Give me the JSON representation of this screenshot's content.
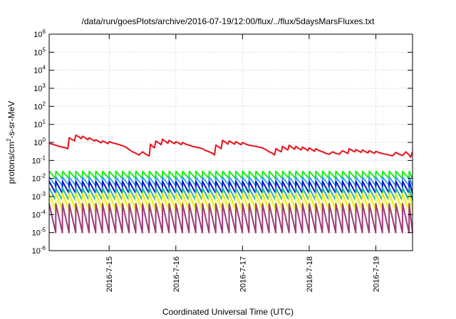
{
  "chart_data": {
    "type": "line",
    "title": "/data/run/goesPlots/archive/2016-07-19/12:00/flux/../flux/5daysMarsFluxes.txt",
    "xlabel": "Coordinated Universal Time (UTC)",
    "ylabel": {
      "before": "protons/cm",
      "superscript": "2",
      "after": "-s-sr-MeV"
    },
    "x_unit": "days",
    "x_range": [
      14.1,
      19.55
    ],
    "x_ticks": [
      {
        "value": 15,
        "label": "2016-7-15"
      },
      {
        "value": 16,
        "label": "2016-7-16"
      },
      {
        "value": 17,
        "label": "2016-7-17"
      },
      {
        "value": 18,
        "label": "2016-7-18"
      },
      {
        "value": 19,
        "label": "2016-7-19"
      }
    ],
    "y_scale": "log",
    "y_range": [
      1e-06,
      1000000.0
    ],
    "y_ticks": [
      {
        "value": 1000000.0,
        "base": "10",
        "exp": "6"
      },
      {
        "value": 100000.0,
        "base": "10",
        "exp": "5"
      },
      {
        "value": 10000.0,
        "base": "10",
        "exp": "4"
      },
      {
        "value": 1000.0,
        "base": "10",
        "exp": "3"
      },
      {
        "value": 100.0,
        "base": "10",
        "exp": "2"
      },
      {
        "value": 10.0,
        "base": "10",
        "exp": "1"
      },
      {
        "value": 1.0,
        "base": "10",
        "exp": "0"
      },
      {
        "value": 0.1,
        "base": "10",
        "exp": "-1"
      },
      {
        "value": 0.01,
        "base": "10",
        "exp": "-2"
      },
      {
        "value": 0.001,
        "base": "10",
        "exp": "-3"
      },
      {
        "value": 0.0001,
        "base": "10",
        "exp": "-4"
      },
      {
        "value": 1e-05,
        "base": "10",
        "exp": "-5"
      },
      {
        "value": 1e-06,
        "base": "10",
        "exp": "-6"
      }
    ],
    "grid": true,
    "series": [
      {
        "color": "#e8101a",
        "points": [
          [
            14.1,
            0.9
          ],
          [
            14.15,
            0.8
          ],
          [
            14.2,
            0.7
          ],
          [
            14.25,
            0.6
          ],
          [
            14.3,
            0.55
          ],
          [
            14.35,
            0.5
          ],
          [
            14.38,
            0.45
          ],
          [
            14.4,
            1.8
          ],
          [
            14.45,
            1.4
          ],
          [
            14.48,
            1.2
          ],
          [
            14.5,
            2.5
          ],
          [
            14.55,
            2.0
          ],
          [
            14.58,
            1.6
          ],
          [
            14.6,
            2.2
          ],
          [
            14.65,
            1.7
          ],
          [
            14.68,
            1.4
          ],
          [
            14.7,
            1.8
          ],
          [
            14.75,
            1.4
          ],
          [
            14.78,
            1.2
          ],
          [
            14.8,
            1.4
          ],
          [
            14.85,
            1.1
          ],
          [
            14.88,
            0.95
          ],
          [
            14.9,
            1.2
          ],
          [
            14.95,
            1.0
          ],
          [
            14.98,
            0.85
          ],
          [
            15.0,
            1.1
          ],
          [
            15.05,
            0.95
          ],
          [
            15.1,
            0.85
          ],
          [
            15.15,
            0.75
          ],
          [
            15.2,
            0.65
          ],
          [
            15.25,
            0.55
          ],
          [
            15.3,
            0.4
          ],
          [
            15.35,
            0.3
          ],
          [
            15.4,
            0.25
          ],
          [
            15.45,
            0.2
          ],
          [
            15.5,
            0.3
          ],
          [
            15.55,
            0.22
          ],
          [
            15.6,
            0.18
          ],
          [
            15.62,
            0.8
          ],
          [
            15.65,
            0.6
          ],
          [
            15.68,
            0.5
          ],
          [
            15.7,
            1.2
          ],
          [
            15.75,
            0.9
          ],
          [
            15.78,
            0.75
          ],
          [
            15.8,
            1.5
          ],
          [
            15.85,
            1.1
          ],
          [
            15.88,
            0.9
          ],
          [
            15.9,
            1.3
          ],
          [
            15.95,
            1.0
          ],
          [
            15.98,
            0.85
          ],
          [
            16.0,
            1.1
          ],
          [
            16.05,
            0.9
          ],
          [
            16.08,
            0.75
          ],
          [
            16.1,
            1.0
          ],
          [
            16.15,
            0.8
          ],
          [
            16.2,
            0.7
          ],
          [
            16.25,
            0.6
          ],
          [
            16.3,
            0.55
          ],
          [
            16.35,
            0.5
          ],
          [
            16.4,
            0.45
          ],
          [
            16.45,
            0.35
          ],
          [
            16.5,
            0.3
          ],
          [
            16.55,
            0.25
          ],
          [
            16.58,
            0.2
          ],
          [
            16.6,
            0.7
          ],
          [
            16.65,
            0.55
          ],
          [
            16.68,
            0.45
          ],
          [
            16.7,
            1.3
          ],
          [
            16.75,
            1.0
          ],
          [
            16.78,
            0.8
          ],
          [
            16.8,
            1.2
          ],
          [
            16.85,
            0.95
          ],
          [
            16.88,
            0.8
          ],
          [
            16.9,
            1.1
          ],
          [
            16.95,
            0.85
          ],
          [
            16.98,
            0.75
          ],
          [
            17.0,
            1.0
          ],
          [
            17.05,
            0.8
          ],
          [
            17.1,
            0.7
          ],
          [
            17.15,
            0.65
          ],
          [
            17.2,
            0.6
          ],
          [
            17.25,
            0.55
          ],
          [
            17.3,
            0.5
          ],
          [
            17.35,
            0.4
          ],
          [
            17.4,
            0.3
          ],
          [
            17.45,
            0.25
          ],
          [
            17.48,
            0.2
          ],
          [
            17.5,
            0.45
          ],
          [
            17.55,
            0.35
          ],
          [
            17.58,
            0.3
          ],
          [
            17.6,
            0.6
          ],
          [
            17.65,
            0.45
          ],
          [
            17.68,
            0.38
          ],
          [
            17.7,
            0.7
          ],
          [
            17.75,
            0.5
          ],
          [
            17.78,
            0.42
          ],
          [
            17.8,
            0.6
          ],
          [
            17.85,
            0.45
          ],
          [
            17.88,
            0.38
          ],
          [
            17.9,
            0.55
          ],
          [
            17.95,
            0.42
          ],
          [
            17.98,
            0.35
          ],
          [
            18.0,
            0.5
          ],
          [
            18.05,
            0.38
          ],
          [
            18.08,
            0.32
          ],
          [
            18.1,
            0.45
          ],
          [
            18.15,
            0.35
          ],
          [
            18.2,
            0.3
          ],
          [
            18.25,
            0.25
          ],
          [
            18.3,
            0.22
          ],
          [
            18.35,
            0.3
          ],
          [
            18.4,
            0.25
          ],
          [
            18.45,
            0.22
          ],
          [
            18.5,
            0.35
          ],
          [
            18.55,
            0.28
          ],
          [
            18.58,
            0.24
          ],
          [
            18.6,
            0.45
          ],
          [
            18.65,
            0.35
          ],
          [
            18.68,
            0.3
          ],
          [
            18.7,
            0.4
          ],
          [
            18.75,
            0.32
          ],
          [
            18.78,
            0.28
          ],
          [
            18.8,
            0.38
          ],
          [
            18.85,
            0.3
          ],
          [
            18.88,
            0.26
          ],
          [
            18.9,
            0.35
          ],
          [
            18.95,
            0.28
          ],
          [
            18.98,
            0.25
          ],
          [
            19.0,
            0.32
          ],
          [
            19.05,
            0.27
          ],
          [
            19.1,
            0.24
          ],
          [
            19.15,
            0.22
          ],
          [
            19.2,
            0.2
          ],
          [
            19.25,
            0.18
          ],
          [
            19.3,
            0.28
          ],
          [
            19.35,
            0.22
          ],
          [
            19.4,
            0.19
          ],
          [
            19.45,
            0.3
          ],
          [
            19.5,
            0.2
          ],
          [
            19.52,
            0.15
          ],
          [
            19.55,
            0.3
          ]
        ]
      },
      {
        "color": "#1aee1a",
        "sawtooth": {
          "period": 0.1,
          "phase": 0.0,
          "peak": 0.025,
          "trough": 0.01
        }
      },
      {
        "color": "#38a0f0",
        "sawtooth": {
          "period": 0.1,
          "phase": 0.0,
          "peak": 0.012,
          "trough": 0.004
        }
      },
      {
        "color": "#0a14d0",
        "sawtooth": {
          "period": 0.1,
          "phase": 0.0,
          "peak": 0.007,
          "trough": 0.0015
        }
      },
      {
        "color": "#18b8a0",
        "sawtooth": {
          "period": 0.1,
          "phase": 0.0,
          "peak": 0.003,
          "trough": 0.0006
        }
      },
      {
        "color": "#ecec18",
        "sawtooth": {
          "period": 0.1,
          "phase": 0.0,
          "peak": 0.0015,
          "trough": 0.0002
        }
      },
      {
        "color": "#f8f896",
        "sawtooth": {
          "period": 0.1,
          "phase": 0.0,
          "peak": 0.0008,
          "trough": 0.00012
        }
      },
      {
        "color": "#9c3a78",
        "sawtooth": {
          "period": 0.1,
          "phase": 0.0,
          "peak": 0.0004,
          "trough": 1e-05
        }
      }
    ]
  }
}
